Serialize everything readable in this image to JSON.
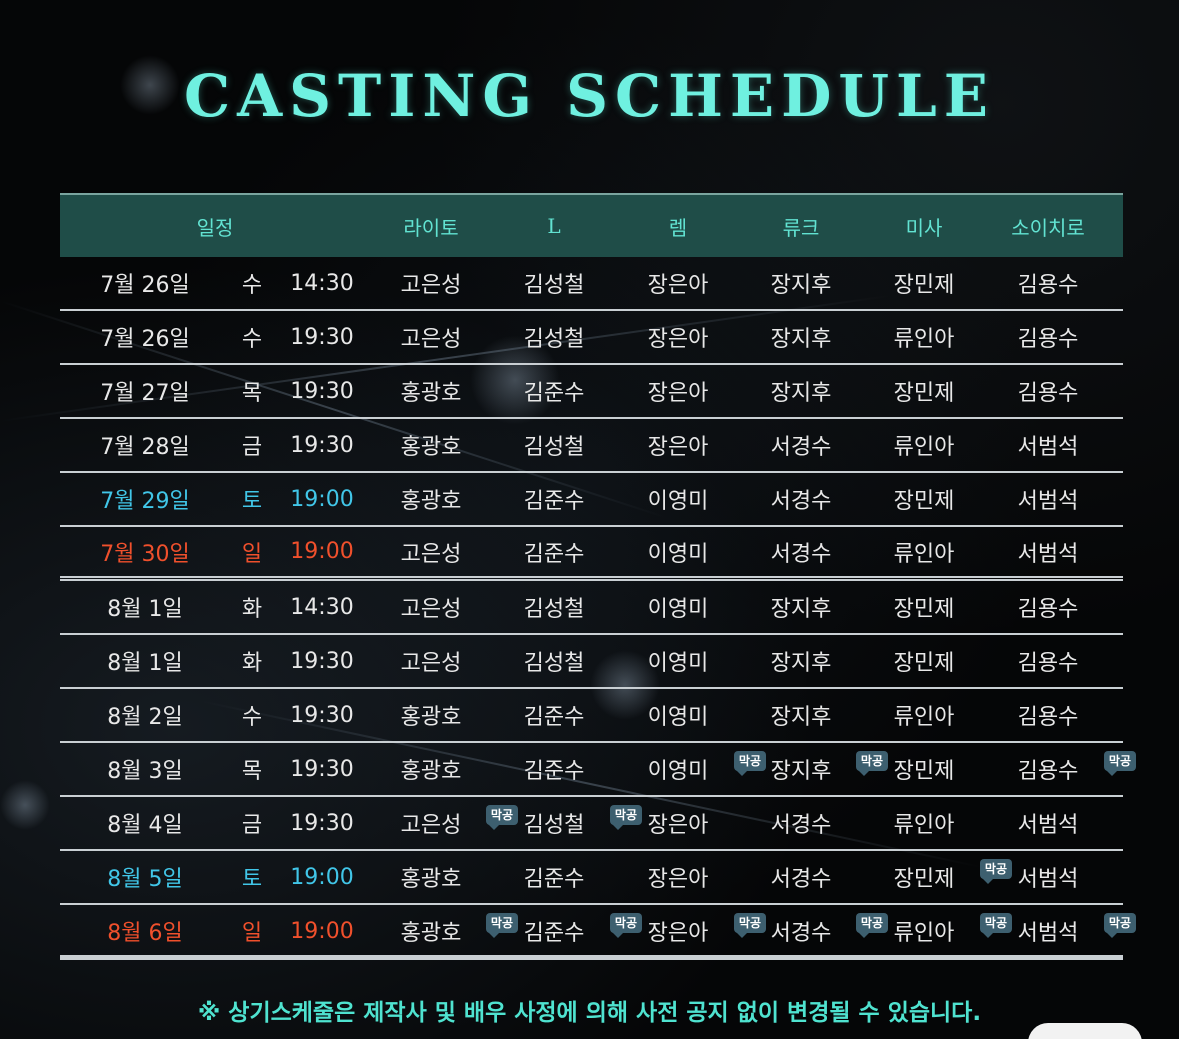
{
  "title": "CASTING SCHEDULE",
  "colors": {
    "accent": "#62e3d2",
    "saturday": "#41c6e8",
    "sunday": "#f0502c",
    "normal": "#e8e8e8",
    "header_bg": "#1f4d48"
  },
  "table": {
    "headers": [
      "일정",
      "라이토",
      "L",
      "렘",
      "류크",
      "미사",
      "소이치로"
    ],
    "badge_label": "막공",
    "rows": [
      {
        "date": "7월 26일",
        "day": "수",
        "time": "14:30",
        "cast": [
          "고은성",
          "김성철",
          "장은아",
          "장지후",
          "장민제",
          "김용수"
        ],
        "tone": "normal",
        "badges": [
          false,
          false,
          false,
          false,
          false,
          false
        ]
      },
      {
        "date": "7월 26일",
        "day": "수",
        "time": "19:30",
        "cast": [
          "고은성",
          "김성철",
          "장은아",
          "장지후",
          "류인아",
          "김용수"
        ],
        "tone": "normal",
        "badges": [
          false,
          false,
          false,
          false,
          false,
          false
        ]
      },
      {
        "date": "7월 27일",
        "day": "목",
        "time": "19:30",
        "cast": [
          "홍광호",
          "김준수",
          "장은아",
          "장지후",
          "장민제",
          "김용수"
        ],
        "tone": "normal",
        "badges": [
          false,
          false,
          false,
          false,
          false,
          false
        ]
      },
      {
        "date": "7월 28일",
        "day": "금",
        "time": "19:30",
        "cast": [
          "홍광호",
          "김성철",
          "장은아",
          "서경수",
          "류인아",
          "서범석"
        ],
        "tone": "normal",
        "badges": [
          false,
          false,
          false,
          false,
          false,
          false
        ]
      },
      {
        "date": "7월 29일",
        "day": "토",
        "time": "19:00",
        "cast": [
          "홍광호",
          "김준수",
          "이영미",
          "서경수",
          "장민제",
          "서범석"
        ],
        "tone": "saturday",
        "badges": [
          false,
          false,
          false,
          false,
          false,
          false
        ]
      },
      {
        "date": "7월 30일",
        "day": "일",
        "time": "19:00",
        "cast": [
          "고은성",
          "김준수",
          "이영미",
          "서경수",
          "류인아",
          "서범석"
        ],
        "tone": "sunday",
        "badges": [
          false,
          false,
          false,
          false,
          false,
          false
        ],
        "double": true
      },
      {
        "date": "8월 1일",
        "day": "화",
        "time": "14:30",
        "cast": [
          "고은성",
          "김성철",
          "이영미",
          "장지후",
          "장민제",
          "김용수"
        ],
        "tone": "normal",
        "badges": [
          false,
          false,
          false,
          false,
          false,
          false
        ]
      },
      {
        "date": "8월 1일",
        "day": "화",
        "time": "19:30",
        "cast": [
          "고은성",
          "김성철",
          "이영미",
          "장지후",
          "장민제",
          "김용수"
        ],
        "tone": "normal",
        "badges": [
          false,
          false,
          false,
          false,
          false,
          false
        ]
      },
      {
        "date": "8월 2일",
        "day": "수",
        "time": "19:30",
        "cast": [
          "홍광호",
          "김준수",
          "이영미",
          "장지후",
          "류인아",
          "김용수"
        ],
        "tone": "normal",
        "badges": [
          false,
          false,
          false,
          false,
          false,
          false
        ]
      },
      {
        "date": "8월 3일",
        "day": "목",
        "time": "19:30",
        "cast": [
          "홍광호",
          "김준수",
          "이영미",
          "장지후",
          "장민제",
          "김용수"
        ],
        "tone": "normal",
        "badges": [
          false,
          false,
          true,
          true,
          false,
          true
        ]
      },
      {
        "date": "8월 4일",
        "day": "금",
        "time": "19:30",
        "cast": [
          "고은성",
          "김성철",
          "장은아",
          "서경수",
          "류인아",
          "서범석"
        ],
        "tone": "normal",
        "badges": [
          true,
          true,
          false,
          false,
          false,
          false
        ]
      },
      {
        "date": "8월 5일",
        "day": "토",
        "time": "19:00",
        "cast": [
          "홍광호",
          "김준수",
          "장은아",
          "서경수",
          "장민제",
          "서범석"
        ],
        "tone": "saturday",
        "badges": [
          false,
          false,
          false,
          false,
          true,
          false
        ]
      },
      {
        "date": "8월 6일",
        "day": "일",
        "time": "19:00",
        "cast": [
          "홍광호",
          "김준수",
          "장은아",
          "서경수",
          "류인아",
          "서범석"
        ],
        "tone": "sunday",
        "badges": [
          true,
          true,
          true,
          true,
          true,
          true
        ]
      }
    ]
  },
  "note": "※ 상기스케줄은 제작사 및 배우 사정에 의해 사전 공지 없이 변경될 수 있습니다."
}
